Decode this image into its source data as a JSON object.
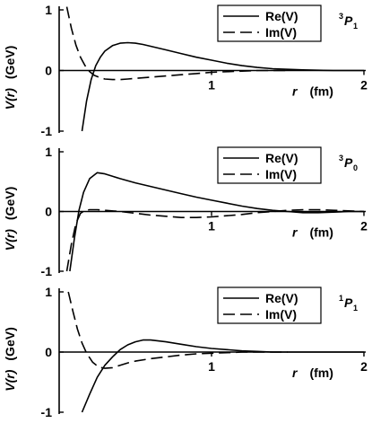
{
  "chart_data": [
    {
      "type": "line",
      "state_label": {
        "pre": "3",
        "main": "P",
        "sub": "1"
      },
      "xlabel": {
        "main": "r",
        "unit": "(fm)"
      },
      "ylabel": {
        "main": "V(r)",
        "unit": "(GeV)"
      },
      "xlim": [
        0,
        2
      ],
      "ylim": [
        -1,
        1
      ],
      "x_ticks": [
        "1",
        "2"
      ],
      "y_ticks": [
        "1",
        "0",
        "-1"
      ],
      "legend_position": "top-right",
      "series": [
        {
          "name": "Re(V)",
          "style": "solid",
          "x": [
            0.15,
            0.18,
            0.21,
            0.24,
            0.27,
            0.3,
            0.35,
            0.4,
            0.45,
            0.5,
            0.55,
            0.6,
            0.7,
            0.8,
            0.9,
            1.0,
            1.1,
            1.2,
            1.3,
            1.4,
            1.5,
            1.6,
            1.7,
            1.8,
            1.9,
            2.0
          ],
          "y": [
            -1.0,
            -0.5,
            -0.15,
            0.08,
            0.22,
            0.32,
            0.41,
            0.45,
            0.46,
            0.45,
            0.43,
            0.4,
            0.34,
            0.28,
            0.22,
            0.17,
            0.12,
            0.08,
            0.05,
            0.03,
            0.02,
            0.01,
            0.005,
            0.0,
            0.0,
            0.0
          ]
        },
        {
          "name": "Im(V)",
          "style": "dashed",
          "x": [
            0.05,
            0.08,
            0.11,
            0.14,
            0.17,
            0.2,
            0.23,
            0.26,
            0.3,
            0.35,
            0.4,
            0.45,
            0.5,
            0.6,
            0.7,
            0.8,
            0.9,
            1.0,
            1.1,
            1.2,
            1.3,
            1.4,
            1.5
          ],
          "y": [
            1.05,
            0.7,
            0.42,
            0.22,
            0.08,
            -0.02,
            -0.08,
            -0.11,
            -0.14,
            -0.15,
            -0.15,
            -0.14,
            -0.13,
            -0.11,
            -0.09,
            -0.07,
            -0.05,
            -0.03,
            -0.02,
            -0.01,
            0.0,
            0.0,
            0.0
          ]
        }
      ]
    },
    {
      "type": "line",
      "state_label": {
        "pre": "3",
        "main": "P",
        "sub": "0"
      },
      "xlabel": {
        "main": "r",
        "unit": "(fm)"
      },
      "ylabel": {
        "main": "V(r)",
        "unit": "(GeV)"
      },
      "xlim": [
        0,
        2
      ],
      "ylim": [
        -1,
        1
      ],
      "x_ticks": [
        "1",
        "2"
      ],
      "y_ticks": [
        "1",
        "0",
        "-1"
      ],
      "legend_position": "top-right",
      "series": [
        {
          "name": "Re(V)",
          "style": "solid",
          "x": [
            0.07,
            0.1,
            0.13,
            0.16,
            0.2,
            0.25,
            0.3,
            0.35,
            0.4,
            0.5,
            0.6,
            0.7,
            0.8,
            0.9,
            1.0,
            1.1,
            1.2,
            1.3,
            1.4,
            1.5,
            1.6,
            1.7,
            1.8,
            1.9,
            2.0
          ],
          "y": [
            -1.0,
            -0.45,
            0.02,
            0.32,
            0.55,
            0.65,
            0.63,
            0.59,
            0.55,
            0.48,
            0.42,
            0.36,
            0.3,
            0.24,
            0.19,
            0.14,
            0.09,
            0.05,
            0.02,
            0.0,
            -0.02,
            -0.02,
            -0.01,
            0.0,
            0.0
          ]
        },
        {
          "name": "Im(V)",
          "style": "dashed",
          "x": [
            0.05,
            0.08,
            0.11,
            0.14,
            0.17,
            0.2,
            0.25,
            0.3,
            0.4,
            0.5,
            0.6,
            0.7,
            0.8,
            0.9,
            1.0,
            1.1,
            1.2,
            1.3,
            1.4,
            1.5,
            1.6,
            1.7,
            1.8,
            1.9,
            2.0
          ],
          "y": [
            -1.0,
            -0.55,
            -0.2,
            -0.03,
            0.02,
            0.03,
            0.03,
            0.02,
            0.0,
            -0.03,
            -0.06,
            -0.08,
            -0.1,
            -0.1,
            -0.09,
            -0.07,
            -0.05,
            -0.02,
            0.0,
            0.02,
            0.03,
            0.03,
            0.02,
            0.01,
            0.0
          ]
        }
      ]
    },
    {
      "type": "line",
      "state_label": {
        "pre": "1",
        "main": "P",
        "sub": "1"
      },
      "xlabel": {
        "main": "r",
        "unit": "(fm)"
      },
      "ylabel": {
        "main": "V(r)",
        "unit": "(GeV)"
      },
      "xlim": [
        0,
        2
      ],
      "ylim": [
        -1,
        1
      ],
      "x_ticks": [
        "1",
        "2"
      ],
      "y_ticks": [
        "1",
        "0",
        "-1"
      ],
      "legend_position": "top-right",
      "series": [
        {
          "name": "Re(V)",
          "style": "solid",
          "x": [
            0.15,
            0.2,
            0.25,
            0.3,
            0.35,
            0.4,
            0.45,
            0.5,
            0.55,
            0.6,
            0.7,
            0.8,
            0.9,
            1.0,
            1.1,
            1.2,
            1.3,
            1.4,
            1.5,
            1.6,
            1.7,
            1.8,
            1.9,
            2.0
          ],
          "y": [
            -1.0,
            -0.7,
            -0.42,
            -0.22,
            -0.08,
            0.04,
            0.12,
            0.17,
            0.2,
            0.2,
            0.17,
            0.13,
            0.09,
            0.06,
            0.04,
            0.02,
            0.01,
            0.0,
            0.0,
            0.0,
            0.0,
            0.0,
            0.0,
            0.0
          ]
        },
        {
          "name": "Im(V)",
          "style": "dashed",
          "x": [
            0.06,
            0.09,
            0.12,
            0.15,
            0.18,
            0.22,
            0.26,
            0.3,
            0.35,
            0.4,
            0.45,
            0.5,
            0.6,
            0.7,
            0.8,
            0.9,
            1.0,
            1.1,
            1.2,
            1.3,
            1.4,
            1.5
          ],
          "y": [
            1.0,
            0.68,
            0.38,
            0.15,
            -0.02,
            -0.17,
            -0.25,
            -0.27,
            -0.26,
            -0.22,
            -0.18,
            -0.15,
            -0.11,
            -0.08,
            -0.05,
            -0.03,
            -0.02,
            -0.01,
            0.0,
            0.0,
            0.0,
            0.0
          ]
        }
      ]
    }
  ]
}
